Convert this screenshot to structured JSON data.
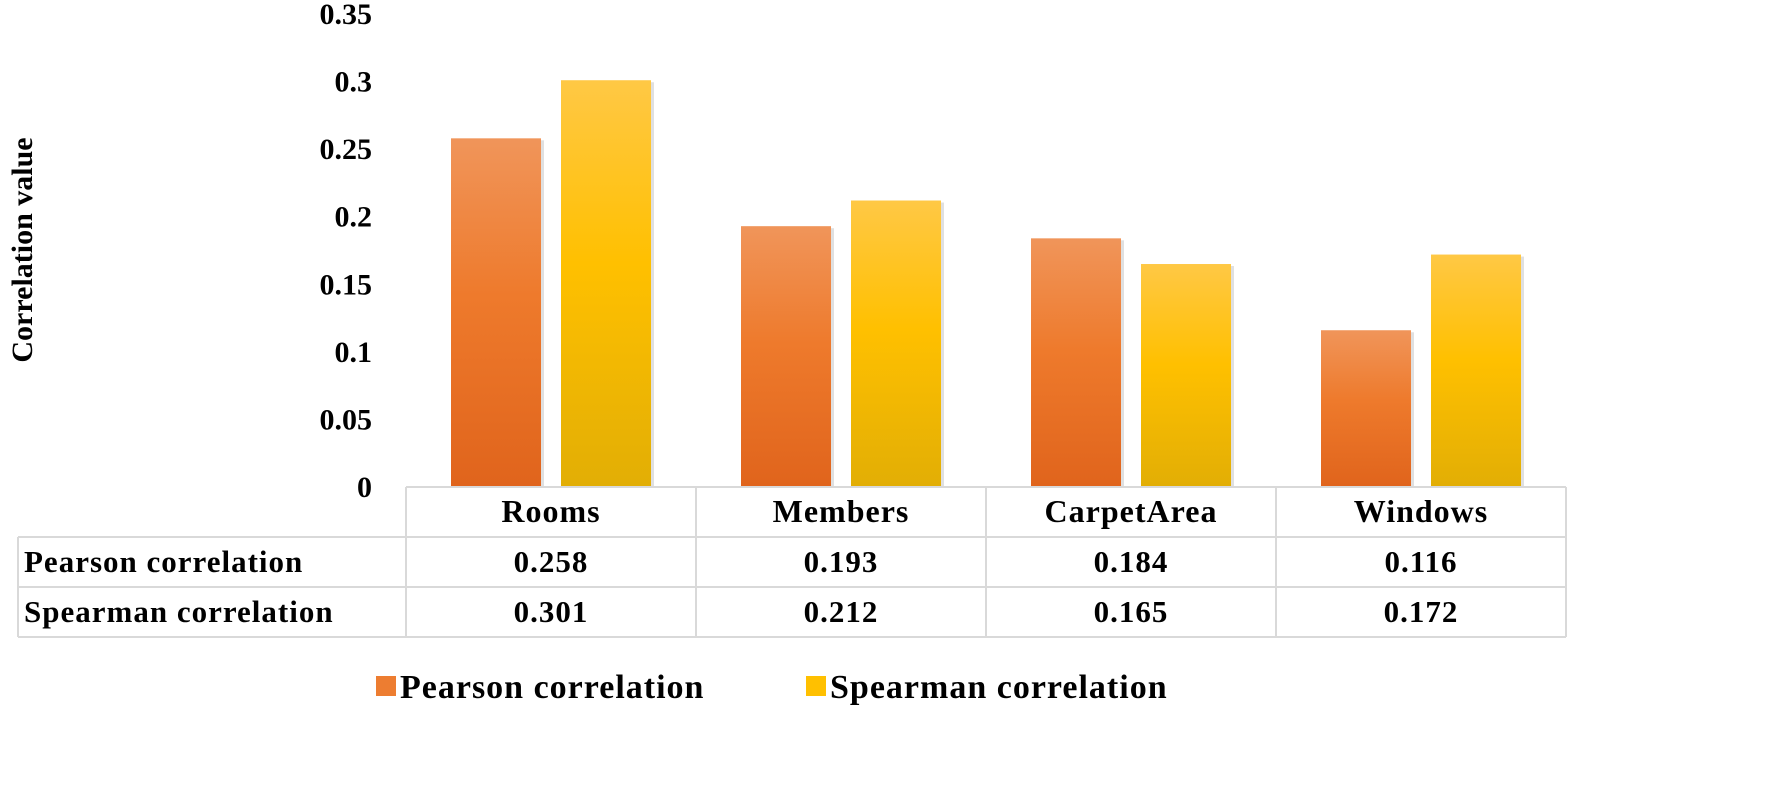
{
  "chart_data": {
    "type": "bar",
    "ylabel": "Correlation value",
    "ylim": [
      0,
      0.35
    ],
    "yticks": [
      "0",
      "0.05",
      "0.1",
      "0.15",
      "0.2",
      "0.25",
      "0.3",
      "0.35"
    ],
    "categories": [
      "Rooms",
      "Members",
      "CarpetArea",
      "Windows"
    ],
    "series": [
      {
        "name": "Pearson correlation",
        "color": "#ED7D31",
        "values": [
          0.258,
          0.193,
          0.184,
          0.116
        ],
        "labels": [
          "0.258",
          "0.193",
          "0.184",
          "0.116"
        ]
      },
      {
        "name": "Spearman correlation",
        "color": "#FFC000",
        "values": [
          0.301,
          0.212,
          0.165,
          0.172
        ],
        "labels": [
          "0.301",
          "0.212",
          "0.165",
          "0.172"
        ]
      }
    ],
    "data_table": true,
    "legend": "bottom",
    "grid": false
  }
}
